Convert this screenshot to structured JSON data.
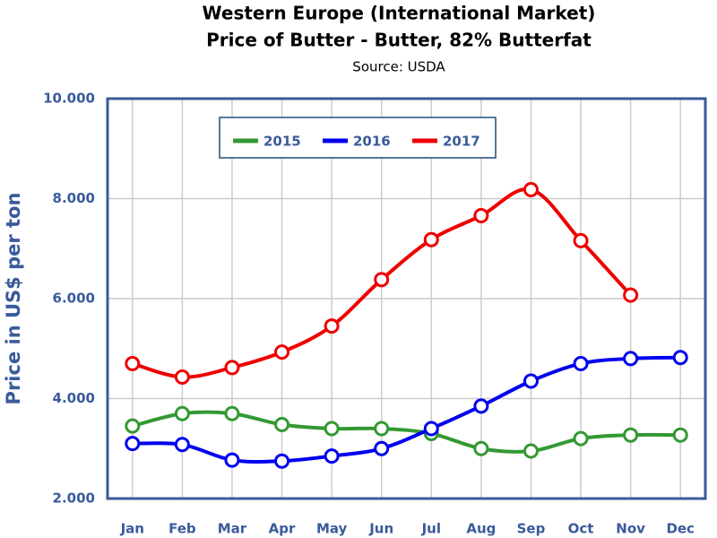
{
  "chart_data": {
    "type": "line",
    "title": "Western Europe (International Market)",
    "subtitle": "Price of Butter - Butter, 82% Butterfat",
    "source": "Source: USDA",
    "y_label": "Price in US$ per ton",
    "categories": [
      "Jan",
      "Feb",
      "Mar",
      "Apr",
      "May",
      "Jun",
      "Jul",
      "Aug",
      "Sep",
      "Oct",
      "Nov",
      "Dec"
    ],
    "series": [
      {
        "name": "2015",
        "color": "#339933",
        "values": [
          3450,
          3700,
          3700,
          3480,
          3400,
          3400,
          3300,
          3000,
          2950,
          3200,
          3270,
          3270
        ]
      },
      {
        "name": "2016",
        "color": "#0000ee",
        "values": [
          3100,
          3080,
          2770,
          2750,
          2850,
          3000,
          3400,
          3850,
          4350,
          4700,
          4800,
          4820
        ]
      },
      {
        "name": "2017",
        "color": "#ee0000",
        "values": [
          4700,
          4430,
          4620,
          4930,
          5450,
          6380,
          7180,
          7660,
          8180,
          7160,
          6070,
          null
        ]
      }
    ],
    "ylim": [
      2000,
      10000
    ],
    "yticks": [
      {
        "value": 2000,
        "label": "2.000"
      },
      {
        "value": 4000,
        "label": "4.000"
      },
      {
        "value": 6000,
        "label": "6.000"
      },
      {
        "value": 8000,
        "label": "8.000"
      },
      {
        "value": 10000,
        "label": "10.000"
      }
    ],
    "grid": true,
    "legend": "top"
  }
}
